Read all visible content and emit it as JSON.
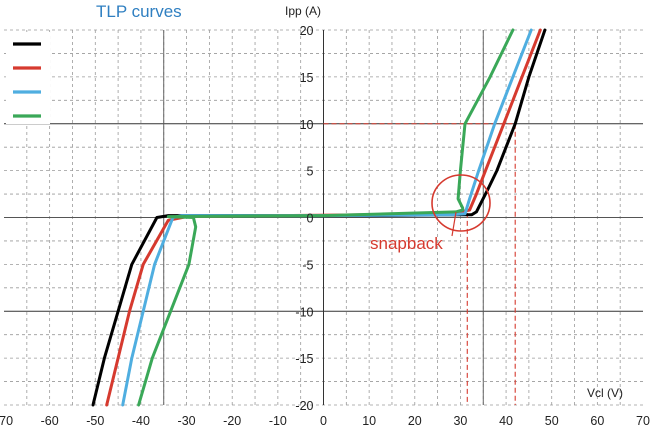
{
  "chart_data": {
    "type": "line",
    "title": "TLP curves",
    "xlabel": "Vcl (V)",
    "ylabel": "Ipp (A)",
    "xlim": [
      -70,
      70
    ],
    "ylim": [
      -20,
      20
    ],
    "x_ticks": [
      -70,
      -60,
      -50,
      -40,
      -30,
      -20,
      -10,
      0,
      10,
      20,
      30,
      40,
      50,
      60,
      70
    ],
    "y_ticks": [
      -20,
      -15,
      -10,
      -5,
      0,
      5,
      10,
      15,
      20
    ],
    "grid": "dashed",
    "legend_position": "top-left",
    "annotation": "snapback",
    "reference_lines": {
      "y": 10,
      "x": [
        31.5,
        42
      ]
    },
    "series": [
      {
        "color": "#000000",
        "points": [
          [
            -50.5,
            -20
          ],
          [
            -48,
            -15
          ],
          [
            -45,
            -10
          ],
          [
            -42,
            -5
          ],
          [
            -36.5,
            0
          ],
          [
            -34,
            0.2
          ],
          [
            -28,
            0.2
          ],
          [
            10,
            0.2
          ],
          [
            30,
            0.3
          ],
          [
            32.5,
            0.3
          ],
          [
            33.5,
            0.6
          ],
          [
            36,
            3
          ],
          [
            38,
            5
          ],
          [
            42,
            10
          ],
          [
            45,
            15
          ],
          [
            48.5,
            20
          ]
        ]
      },
      {
        "color": "#d63a2f",
        "points": [
          [
            -47.5,
            -20
          ],
          [
            -45,
            -15
          ],
          [
            -42.5,
            -10
          ],
          [
            -39.5,
            -5
          ],
          [
            -34,
            -0.3
          ],
          [
            -30,
            0.1
          ],
          [
            10,
            0.3
          ],
          [
            27,
            0.4
          ],
          [
            30,
            0.6
          ],
          [
            32,
            0.8
          ],
          [
            33.5,
            2.5
          ],
          [
            35.5,
            5
          ],
          [
            39.5,
            10
          ],
          [
            43.5,
            15
          ],
          [
            47.5,
            20
          ]
        ]
      },
      {
        "color": "#4faee0",
        "points": [
          [
            -44,
            -20
          ],
          [
            -42,
            -15
          ],
          [
            -39.5,
            -10
          ],
          [
            -37,
            -5
          ],
          [
            -33,
            0
          ],
          [
            -31,
            0.2
          ],
          [
            0,
            0.2
          ],
          [
            28,
            0.3
          ],
          [
            31,
            0.4
          ],
          [
            32,
            2
          ],
          [
            34,
            5
          ],
          [
            37.5,
            10
          ],
          [
            41.5,
            15
          ],
          [
            45.5,
            20
          ]
        ]
      },
      {
        "color": "#3aa858",
        "points": [
          [
            -40.5,
            -20
          ],
          [
            -37.5,
            -15
          ],
          [
            -33.5,
            -10
          ],
          [
            -29.5,
            -5
          ],
          [
            -28,
            -1
          ],
          [
            -28.5,
            0
          ],
          [
            -34,
            0.1
          ],
          [
            0,
            0.2
          ],
          [
            29,
            0.6
          ],
          [
            30.5,
            0.8
          ],
          [
            30.5,
            1
          ],
          [
            29.5,
            2
          ],
          [
            30,
            5
          ],
          [
            31,
            10
          ],
          [
            36.5,
            15
          ],
          [
            41.5,
            20
          ]
        ]
      }
    ]
  }
}
